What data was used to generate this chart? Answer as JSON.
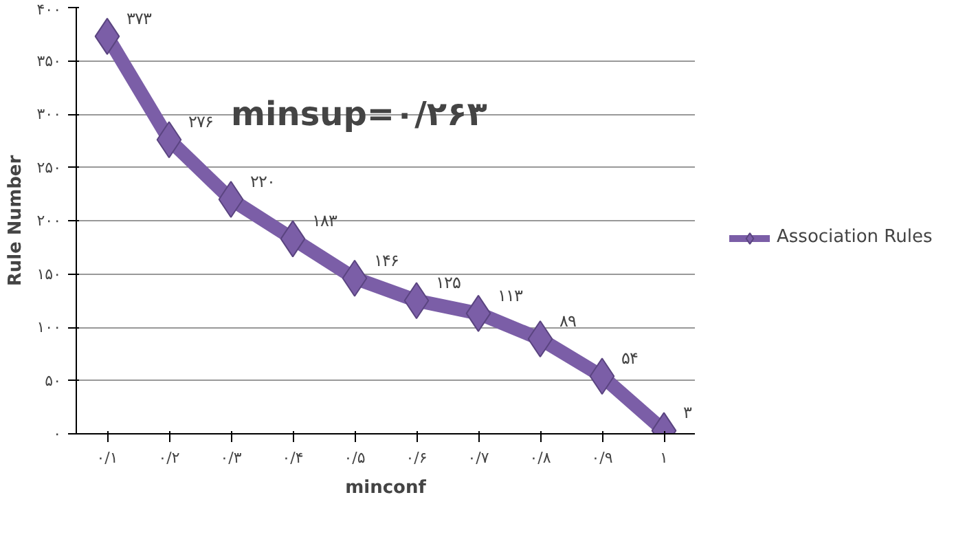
{
  "chart_data": {
    "type": "line",
    "title": "minsup=۰/۲۶۳",
    "xlabel": "minconf",
    "ylabel": "Rule Number",
    "categories": [
      "۰/۱",
      "۰/۲",
      "۰/۳",
      "۰/۴",
      "۰/۵",
      "۰/۶",
      "۰/۷",
      "۰/۸",
      "۰/۹",
      "۱"
    ],
    "series": [
      {
        "name": "Association Rules",
        "color": "#7b5ea7",
        "values": [
          373,
          276,
          220,
          183,
          146,
          125,
          113,
          89,
          54,
          3
        ],
        "value_labels": [
          "۳۷۳",
          "۲۷۶",
          "۲۲۰",
          "۱۸۳",
          "۱۴۶",
          "۱۲۵",
          "۱۱۳",
          "۸۹",
          "۵۴",
          "۳"
        ]
      }
    ],
    "ylim": [
      0,
      400
    ],
    "yticks": [
      {
        "value": 0,
        "label": "۰"
      },
      {
        "value": 50,
        "label": "۵۰"
      },
      {
        "value": 100,
        "label": "۱۰۰"
      },
      {
        "value": 150,
        "label": "۱۵۰"
      },
      {
        "value": 200,
        "label": "۲۰۰"
      },
      {
        "value": 250,
        "label": "۲۵۰"
      },
      {
        "value": 300,
        "label": "۳۰۰"
      },
      {
        "value": 350,
        "label": "۳۵۰"
      },
      {
        "value": 400,
        "label": "۴۰۰"
      }
    ],
    "grid": "y",
    "legend": "right",
    "marker": "diamond",
    "line_style": "solid"
  }
}
